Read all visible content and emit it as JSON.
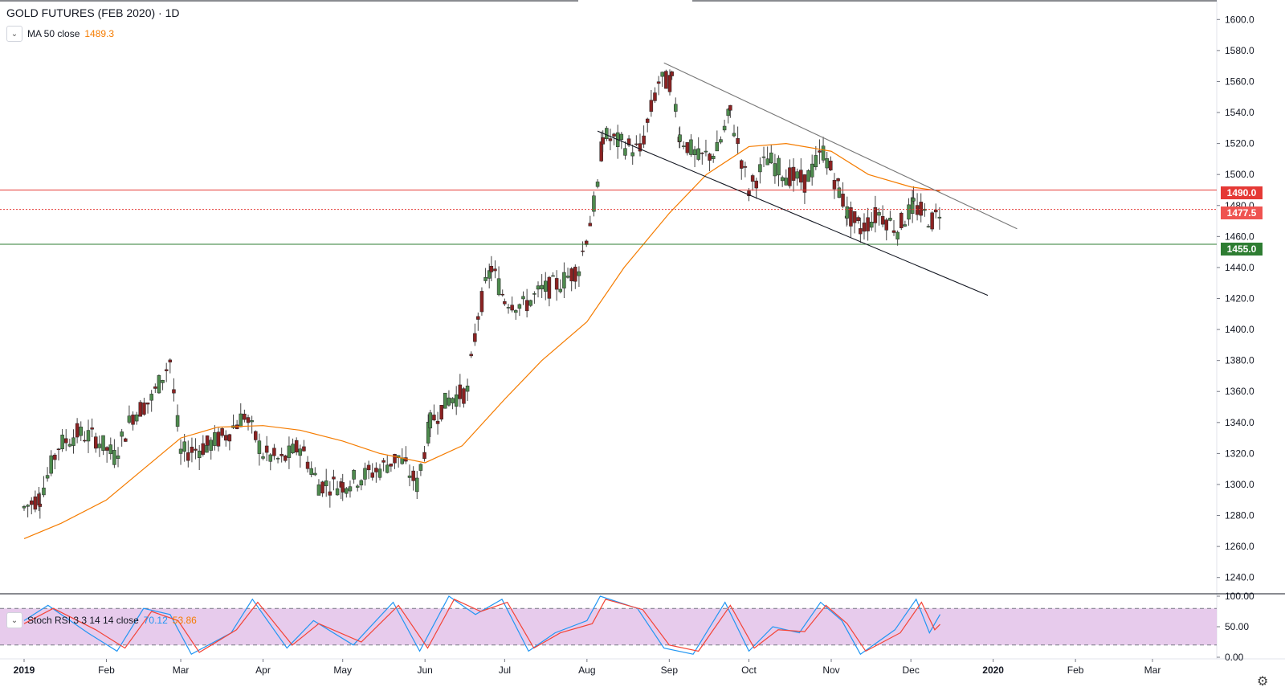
{
  "legend": {
    "symbol_title": "GOLD FUTURES (FEB 2020) · 1D",
    "ma_label": "MA 50 close",
    "ma_value": "1489.3",
    "stoch_label": "Stoch RSI 3 3 14 14 close",
    "stoch_k": "70.12",
    "stoch_d": "53.86",
    "collapse_icon": "chevron-down-icon"
  },
  "price_tags": {
    "resistance": "1490.0",
    "last": "1477.5",
    "support": "1455.0"
  },
  "colors": {
    "up": "#4e8b4e",
    "down": "#8b2222",
    "ma": "#f57c00",
    "resistance": "#e53935",
    "support": "#2e7d32",
    "stoch_k": "#2196f3",
    "stoch_d": "#f44336",
    "stoch_band": "#e1bee7"
  },
  "chart_data": [
    {
      "type": "candlestick",
      "title": "GOLD FUTURES (FEB 2020) · 1D",
      "ylim": [
        1230,
        1610
      ],
      "y_ticks": [
        1240,
        1260,
        1280,
        1300,
        1320,
        1340,
        1360,
        1380,
        1400,
        1420,
        1440,
        1460,
        1480,
        1500,
        1520,
        1540,
        1560,
        1580,
        1600
      ],
      "x_ticks": [
        "2019",
        "Feb",
        "Mar",
        "Apr",
        "May",
        "Jun",
        "Jul",
        "Aug",
        "Sep",
        "Oct",
        "Nov",
        "Dec",
        "2020",
        "Feb",
        "Mar"
      ],
      "close_path": [
        [
          "2019-01-01",
          1285
        ],
        [
          "2019-01-07",
          1292
        ],
        [
          "2019-01-14",
          1325
        ],
        [
          "2019-01-21",
          1333
        ],
        [
          "2019-01-28",
          1330
        ],
        [
          "2019-02-04",
          1318
        ],
        [
          "2019-02-11",
          1345
        ],
        [
          "2019-02-18",
          1355
        ],
        [
          "2019-02-25",
          1380
        ],
        [
          "2019-03-01",
          1320
        ],
        [
          "2019-03-11",
          1325
        ],
        [
          "2019-03-18",
          1332
        ],
        [
          "2019-03-25",
          1345
        ],
        [
          "2019-04-01",
          1320
        ],
        [
          "2019-04-08",
          1315
        ],
        [
          "2019-04-15",
          1325
        ],
        [
          "2019-04-22",
          1300
        ],
        [
          "2019-05-01",
          1300
        ],
        [
          "2019-05-08",
          1305
        ],
        [
          "2019-05-15",
          1310
        ],
        [
          "2019-05-22",
          1318
        ],
        [
          "2019-05-29",
          1300
        ],
        [
          "2019-06-03",
          1340
        ],
        [
          "2019-06-10",
          1355
        ],
        [
          "2019-06-17",
          1360
        ],
        [
          "2019-06-21",
          1410
        ],
        [
          "2019-06-26",
          1440
        ],
        [
          "2019-07-01",
          1420
        ],
        [
          "2019-07-08",
          1415
        ],
        [
          "2019-07-15",
          1425
        ],
        [
          "2019-07-22",
          1430
        ],
        [
          "2019-07-29",
          1440
        ],
        [
          "2019-08-05",
          1490
        ],
        [
          "2019-08-07",
          1525
        ],
        [
          "2019-08-14",
          1520
        ],
        [
          "2019-08-21",
          1515
        ],
        [
          "2019-08-28",
          1560
        ],
        [
          "2019-09-02",
          1560
        ],
        [
          "2019-09-05",
          1525
        ],
        [
          "2019-09-12",
          1510
        ],
        [
          "2019-09-19",
          1515
        ],
        [
          "2019-09-24",
          1540
        ],
        [
          "2019-10-01",
          1490
        ],
        [
          "2019-10-08",
          1510
        ],
        [
          "2019-10-15",
          1500
        ],
        [
          "2019-10-22",
          1495
        ],
        [
          "2019-10-29",
          1515
        ],
        [
          "2019-11-04",
          1490
        ],
        [
          "2019-11-07",
          1475
        ],
        [
          "2019-11-12",
          1465
        ],
        [
          "2019-11-19",
          1475
        ],
        [
          "2019-11-26",
          1465
        ],
        [
          "2019-12-02",
          1480
        ],
        [
          "2019-12-09",
          1470
        ],
        [
          "2019-12-12",
          1477.5
        ]
      ],
      "ma50_path": [
        [
          "2019-01-01",
          1265
        ],
        [
          "2019-01-15",
          1275
        ],
        [
          "2019-02-01",
          1290
        ],
        [
          "2019-02-15",
          1310
        ],
        [
          "2019-03-01",
          1330
        ],
        [
          "2019-03-15",
          1337
        ],
        [
          "2019-04-01",
          1338
        ],
        [
          "2019-04-15",
          1335
        ],
        [
          "2019-05-01",
          1328
        ],
        [
          "2019-05-15",
          1320
        ],
        [
          "2019-06-01",
          1314
        ],
        [
          "2019-06-15",
          1325
        ],
        [
          "2019-07-01",
          1355
        ],
        [
          "2019-07-15",
          1380
        ],
        [
          "2019-08-01",
          1405
        ],
        [
          "2019-08-15",
          1440
        ],
        [
          "2019-09-01",
          1475
        ],
        [
          "2019-09-15",
          1500
        ],
        [
          "2019-10-01",
          1518
        ],
        [
          "2019-10-15",
          1520
        ],
        [
          "2019-11-01",
          1515
        ],
        [
          "2019-11-15",
          1500
        ],
        [
          "2019-12-01",
          1492
        ],
        [
          "2019-12-12",
          1489.3
        ]
      ],
      "horizontal_levels": [
        {
          "value": 1490.0,
          "style": "solid",
          "color": "#e53935"
        },
        {
          "value": 1477.5,
          "style": "dotted",
          "color": "#e53935"
        },
        {
          "value": 1455.0,
          "style": "solid",
          "color": "#2e7d32"
        }
      ],
      "trendlines": [
        {
          "from": [
            "2019-08-30",
            1572
          ],
          "to": [
            "2020-01-10",
            1465
          ],
          "color": "#777777"
        },
        {
          "from": [
            "2019-08-05",
            1528
          ],
          "to": [
            "2019-12-30",
            1422
          ],
          "color": "#131722"
        }
      ]
    },
    {
      "type": "line",
      "title": "Stoch RSI 3 3 14 14 close",
      "ylim": [
        0,
        100
      ],
      "y_ticks": [
        0.0,
        50.0,
        100.0
      ],
      "band": [
        20,
        80
      ],
      "series": [
        {
          "name": "K",
          "color": "#2196f3",
          "points": [
            [
              "2019-01-01",
              60
            ],
            [
              "2019-01-10",
              85
            ],
            [
              "2019-01-25",
              40
            ],
            [
              "2019-02-05",
              10
            ],
            [
              "2019-02-15",
              80
            ],
            [
              "2019-02-25",
              70
            ],
            [
              "2019-03-05",
              5
            ],
            [
              "2019-03-20",
              40
            ],
            [
              "2019-03-28",
              95
            ],
            [
              "2019-04-10",
              15
            ],
            [
              "2019-04-20",
              60
            ],
            [
              "2019-05-05",
              20
            ],
            [
              "2019-05-20",
              90
            ],
            [
              "2019-05-30",
              10
            ],
            [
              "2019-06-10",
              100
            ],
            [
              "2019-06-20",
              70
            ],
            [
              "2019-06-30",
              95
            ],
            [
              "2019-07-10",
              10
            ],
            [
              "2019-07-20",
              40
            ],
            [
              "2019-08-01",
              60
            ],
            [
              "2019-08-06",
              100
            ],
            [
              "2019-08-20",
              80
            ],
            [
              "2019-08-30",
              15
            ],
            [
              "2019-09-10",
              5
            ],
            [
              "2019-09-22",
              90
            ],
            [
              "2019-10-01",
              10
            ],
            [
              "2019-10-10",
              50
            ],
            [
              "2019-10-20",
              40
            ],
            [
              "2019-10-28",
              90
            ],
            [
              "2019-11-05",
              60
            ],
            [
              "2019-11-12",
              5
            ],
            [
              "2019-11-25",
              45
            ],
            [
              "2019-12-03",
              95
            ],
            [
              "2019-12-08",
              40
            ],
            [
              "2019-12-12",
              70.12
            ]
          ]
        },
        {
          "name": "D",
          "color": "#f44336",
          "points": [
            [
              "2019-01-01",
              55
            ],
            [
              "2019-01-12",
              80
            ],
            [
              "2019-01-28",
              45
            ],
            [
              "2019-02-08",
              15
            ],
            [
              "2019-02-18",
              75
            ],
            [
              "2019-02-28",
              60
            ],
            [
              "2019-03-08",
              8
            ],
            [
              "2019-03-22",
              45
            ],
            [
              "2019-03-30",
              90
            ],
            [
              "2019-04-12",
              20
            ],
            [
              "2019-04-22",
              55
            ],
            [
              "2019-05-08",
              25
            ],
            [
              "2019-05-22",
              85
            ],
            [
              "2019-06-02",
              15
            ],
            [
              "2019-06-12",
              95
            ],
            [
              "2019-06-22",
              75
            ],
            [
              "2019-07-02",
              90
            ],
            [
              "2019-07-12",
              15
            ],
            [
              "2019-07-22",
              40
            ],
            [
              "2019-08-03",
              55
            ],
            [
              "2019-08-08",
              95
            ],
            [
              "2019-08-22",
              78
            ],
            [
              "2019-09-01",
              20
            ],
            [
              "2019-09-12",
              10
            ],
            [
              "2019-09-24",
              85
            ],
            [
              "2019-10-03",
              15
            ],
            [
              "2019-10-12",
              45
            ],
            [
              "2019-10-22",
              42
            ],
            [
              "2019-10-30",
              85
            ],
            [
              "2019-11-07",
              55
            ],
            [
              "2019-11-14",
              10
            ],
            [
              "2019-11-27",
              40
            ],
            [
              "2019-12-05",
              90
            ],
            [
              "2019-12-10",
              45
            ],
            [
              "2019-12-12",
              53.86
            ]
          ]
        }
      ]
    }
  ]
}
